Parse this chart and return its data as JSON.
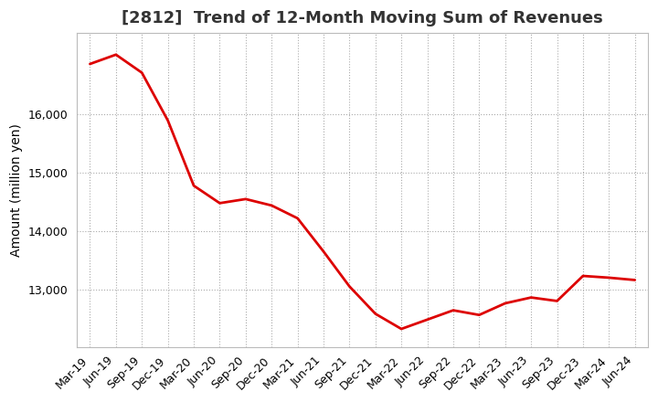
{
  "title": "[2812]  Trend of 12-Month Moving Sum of Revenues",
  "ylabel": "Amount (million yen)",
  "line_color": "#dd0000",
  "background_color": "#ffffff",
  "plot_bg_color": "#ffffff",
  "grid_color": "#aaaaaa",
  "x_labels": [
    "Mar-19",
    "Jun-19",
    "Sep-19",
    "Dec-19",
    "Mar-20",
    "Jun-20",
    "Sep-20",
    "Dec-20",
    "Mar-21",
    "Jun-21",
    "Sep-21",
    "Dec-21",
    "Mar-22",
    "Jun-22",
    "Sep-22",
    "Dec-22",
    "Mar-23",
    "Jun-23",
    "Sep-23",
    "Dec-23",
    "Mar-24",
    "Jun-24"
  ],
  "values": [
    16870,
    17030,
    16720,
    15900,
    14780,
    14480,
    14550,
    14440,
    14220,
    13650,
    13050,
    12580,
    12320,
    12480,
    12640,
    12560,
    12760,
    12860,
    12800,
    13230,
    13200,
    13160
  ],
  "ylim_min": 12000,
  "ylim_max": 17400,
  "yticks": [
    13000,
    14000,
    15000,
    16000
  ],
  "title_fontsize": 13,
  "title_color": "#333333",
  "label_fontsize": 10,
  "tick_fontsize": 9
}
